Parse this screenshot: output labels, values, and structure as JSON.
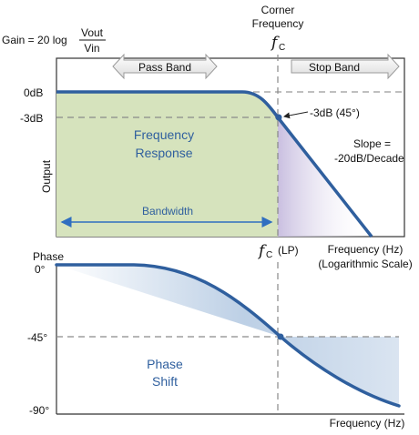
{
  "gain_formula": {
    "prefix": "Gain = 20 log",
    "numerator": "Vout",
    "denominator": "Vin"
  },
  "corner_frequency": {
    "line1": "Corner",
    "line2": "Frequency",
    "symbol": "f",
    "symbol_sub": "C"
  },
  "bands": {
    "pass_band": "Pass Band",
    "stop_band": "Stop Band"
  },
  "magnitude_plot": {
    "y_axis_label": "Output",
    "y_ticks": [
      "0dB",
      "-3dB"
    ],
    "region_label_line1": "Frequency",
    "region_label_line2": "Response",
    "bandwidth_label": "Bandwidth",
    "corner_point_label": "-3dB (45°)",
    "slope_label_line1": "Slope =",
    "slope_label_line2": "-20dB/Decade",
    "corner_axis_symbol": "f",
    "corner_axis_sub": "C",
    "corner_axis_suffix": "(LP)",
    "x_axis_label_line1": "Frequency (Hz)",
    "x_axis_label_line2": "(Logarithmic Scale)"
  },
  "phase_plot": {
    "title": "Phase",
    "y_ticks": [
      "0°",
      "-45°",
      "-90°"
    ],
    "region_label_line1": "Phase",
    "region_label_line2": "Shift",
    "x_axis_label": "Frequency (Hz)"
  },
  "colors": {
    "curve": "#2f5f9e",
    "pass_fill": "#d6e3bd",
    "stop_fill": "#d9d2ea",
    "phase_fill": "#c5d5e8",
    "arrow": "#2f6ec0",
    "band_arrow_fill": "#ececec"
  }
}
